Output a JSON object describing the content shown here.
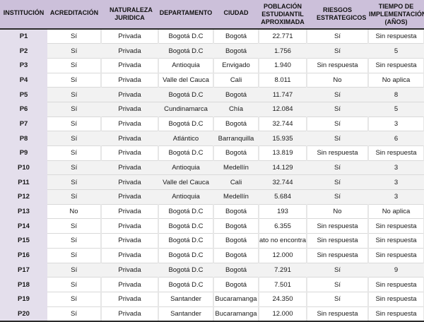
{
  "table": {
    "headers": [
      "INSTITUCIÓN",
      "ACREDITACIÓN",
      "NATURALEZA JURIDICA",
      "DEPARTAMENTO",
      "CIUDAD",
      "POBLACIÓN ESTUDIANTIL APROXIMADA",
      "RIESGOS ESTRATEGICOS",
      "TIEMPO DE IMPLEMENTACIÓN (AÑOS)"
    ],
    "rows": [
      {
        "shade": "white",
        "cells": [
          "P1",
          "Sí",
          "Privada",
          "Bogotá D.C",
          "Bogotá",
          "22.771",
          "Sí",
          "Sin respuesta"
        ]
      },
      {
        "shade": "gray",
        "cells": [
          "P2",
          "Sí",
          "Privada",
          "Bogotá D.C",
          "Bogotá",
          "1.756",
          "Sí",
          "5"
        ]
      },
      {
        "shade": "white",
        "cells": [
          "P3",
          "Sí",
          "Privada",
          "Antioquia",
          "Envigado",
          "1.940",
          "Sin respuesta",
          "Sin respuesta"
        ]
      },
      {
        "shade": "white",
        "cells": [
          "P4",
          "Sí",
          "Privada",
          "Valle del Cauca",
          "Cali",
          "8.011",
          "No",
          "No aplica"
        ]
      },
      {
        "shade": "gray",
        "cells": [
          "P5",
          "Sí",
          "Privada",
          "Bogotá D.C",
          "Bogotá",
          "11.747",
          "Sí",
          "8"
        ]
      },
      {
        "shade": "gray",
        "cells": [
          "P6",
          "Sí",
          "Privada",
          "Cundinamarca",
          "Chía",
          "12.084",
          "Sí",
          "5"
        ]
      },
      {
        "shade": "white",
        "cells": [
          "P7",
          "Sí",
          "Privada",
          "Bogotá D.C",
          "Bogotá",
          "32.744",
          "Sí",
          "3"
        ]
      },
      {
        "shade": "gray",
        "cells": [
          "P8",
          "Sí",
          "Privada",
          "Atlántico",
          "Barranquilla",
          "15.935",
          "Sí",
          "6"
        ]
      },
      {
        "shade": "white",
        "cells": [
          "P9",
          "Sí",
          "Privada",
          "Bogotá D.C",
          "Bogotá",
          "13.819",
          "Sin respuesta",
          "Sin respuesta"
        ]
      },
      {
        "shade": "gray",
        "cells": [
          "P10",
          "Sí",
          "Privada",
          "Antioquia",
          "Medellín",
          "14.129",
          "Sí",
          "3"
        ]
      },
      {
        "shade": "gray",
        "cells": [
          "P11",
          "Sí",
          "Privada",
          "Valle del Cauca",
          "Cali",
          "32.744",
          "Sí",
          "3"
        ]
      },
      {
        "shade": "gray",
        "cells": [
          "P12",
          "Sí",
          "Privada",
          "Antioquia",
          "Medellín",
          "5.684",
          "Sí",
          "3"
        ]
      },
      {
        "shade": "white",
        "cells": [
          "P13",
          "No",
          "Privada",
          "Bogotá D.C",
          "Bogotá",
          "193",
          "No",
          "No aplica"
        ]
      },
      {
        "shade": "white",
        "cells": [
          "P14",
          "Sí",
          "Privada",
          "Bogotá D.C",
          "Bogotá",
          "6.355",
          "Sin respuesta",
          "Sin respuesta"
        ]
      },
      {
        "shade": "white",
        "cells": [
          "P15",
          "Sí",
          "Privada",
          "Bogotá D.C",
          "Bogotá",
          "ato no encontrad",
          "Sin respuesta",
          "Sin respuesta"
        ]
      },
      {
        "shade": "white",
        "cells": [
          "P16",
          "Sí",
          "Privada",
          "Bogotá D.C",
          "Bogotá",
          "12.000",
          "Sin respuesta",
          "Sin respuesta"
        ]
      },
      {
        "shade": "gray",
        "cells": [
          "P17",
          "Sí",
          "Privada",
          "Bogotá D.C",
          "Bogotá",
          "7.291",
          "Sí",
          "9"
        ]
      },
      {
        "shade": "white",
        "cells": [
          "P18",
          "Sí",
          "Privada",
          "Bogotá D.C",
          "Bogotá",
          "7.501",
          "Sí",
          "Sin respuesta"
        ]
      },
      {
        "shade": "white",
        "cells": [
          "P19",
          "Sí",
          "Privada",
          "Santander",
          "Bucaramanga",
          "24.350",
          "Sí",
          "Sin respuesta"
        ]
      },
      {
        "shade": "white",
        "cells": [
          "P20",
          "Sí",
          "Privada",
          "Santander",
          "Bucaramanga",
          "12.000",
          "Sin respuesta",
          "Sin respuesta"
        ]
      }
    ]
  },
  "colors": {
    "header_bg": "#ccc0da",
    "first_column_bg": "#e4dfec",
    "row_gray": "#f2f2f2",
    "row_white": "#ffffff",
    "rule": "#2a2a2a"
  }
}
